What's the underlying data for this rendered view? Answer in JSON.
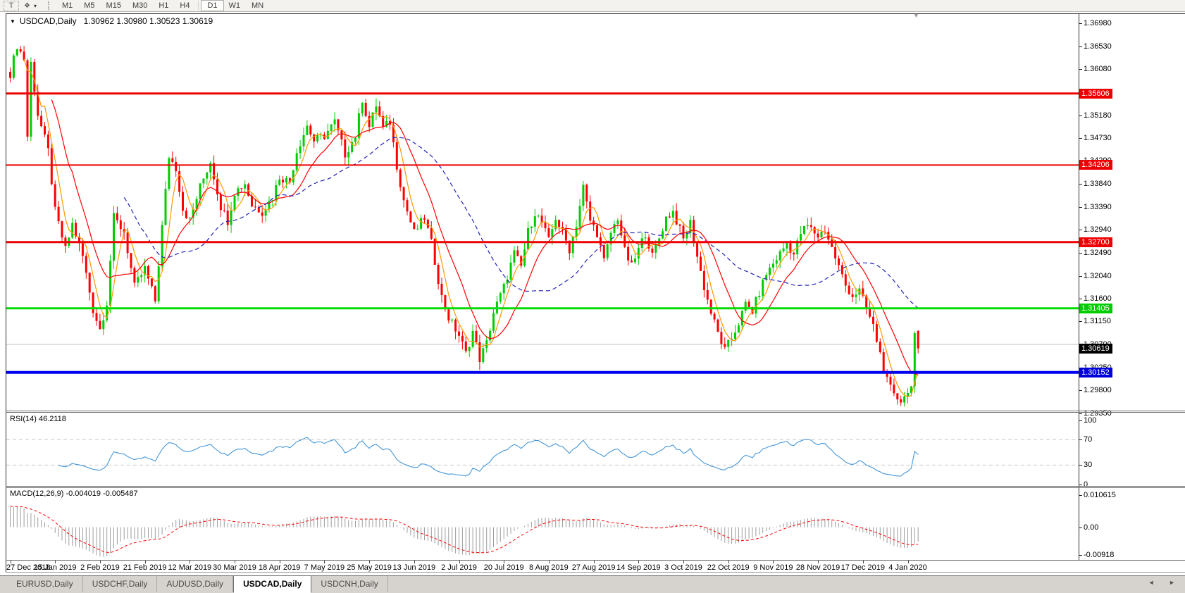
{
  "toolbar": {
    "text_tool_label": "T",
    "timeframes": [
      "M1",
      "M5",
      "M15",
      "M30",
      "H1",
      "H4",
      "D1",
      "W1",
      "MN"
    ],
    "active_timeframe": "D1"
  },
  "icons": {
    "caret_down": "▾",
    "collapse": "▼",
    "shift_marker": "▼",
    "arrange": "❖",
    "tab_scroll_left": "◄",
    "tab_scroll_right": "►"
  },
  "chart_header": {
    "symbol": "USDCAD,Daily",
    "ohlc_text": "1.30962 1.30980 1.30523 1.30619"
  },
  "chart_data": {
    "type": "candlestick",
    "symbol": "USDCAD",
    "timeframe": "Daily",
    "current_ohlc": {
      "open": 1.30962,
      "high": 1.3098,
      "low": 1.30523,
      "close": 1.30619
    },
    "candle_colors": {
      "up": "#00cd00",
      "down": "#ff0000"
    },
    "y_axis": {
      "range_top": 1.37159,
      "range_bottom": 1.29405,
      "ticks": [
        "1.36980",
        "1.36530",
        "1.36080",
        "1.35630",
        "1.35180",
        "1.34730",
        "1.34290",
        "1.33840",
        "1.33390",
        "1.32940",
        "1.32490",
        "1.32040",
        "1.31600",
        "1.31150",
        "1.30700",
        "1.30250",
        "1.29800",
        "1.29350"
      ]
    },
    "x_axis": {
      "labels": [
        "27 Dec 2018",
        "15 Jan 2019",
        "2 Feb 2019",
        "21 Feb 2019",
        "12 Mar 2019",
        "30 Mar 2019",
        "18 Apr 2019",
        "7 May 2019",
        "25 May 2019",
        "13 Jun 2019",
        "2 Jul 2019",
        "20 Jul 2019",
        "8 Aug 2019",
        "27 Aug 2019",
        "14 Sep 2019",
        "3 Oct 2019",
        "22 Oct 2019",
        "9 Nov 2019",
        "28 Nov 2019",
        "17 Dec 2019",
        "4 Jan 2020"
      ],
      "candles_per_label": 13
    },
    "candles": {
      "count": 264,
      "anchors": [
        [
          0,
          1.36
        ],
        [
          2,
          1.3655
        ],
        [
          4,
          1.3628
        ],
        [
          5,
          1.3477
        ],
        [
          6,
          1.362
        ],
        [
          8,
          1.352
        ],
        [
          11,
          1.3448
        ],
        [
          13,
          1.333
        ],
        [
          16,
          1.3255
        ],
        [
          18,
          1.3305
        ],
        [
          21,
          1.3242
        ],
        [
          24,
          1.3138
        ],
        [
          26,
          1.31
        ],
        [
          28,
          1.3152
        ],
        [
          30,
          1.3318
        ],
        [
          33,
          1.329
        ],
        [
          36,
          1.3182
        ],
        [
          39,
          1.3218
        ],
        [
          42,
          1.3155
        ],
        [
          44,
          1.33
        ],
        [
          46,
          1.3438
        ],
        [
          48,
          1.3415
        ],
        [
          50,
          1.3335
        ],
        [
          52,
          1.3312
        ],
        [
          55,
          1.3378
        ],
        [
          58,
          1.3428
        ],
        [
          61,
          1.334
        ],
        [
          63,
          1.3312
        ],
        [
          65,
          1.3368
        ],
        [
          68,
          1.3385
        ],
        [
          70,
          1.3342
        ],
        [
          73,
          1.333
        ],
        [
          76,
          1.3358
        ],
        [
          78,
          1.3398
        ],
        [
          81,
          1.3388
        ],
        [
          83,
          1.3448
        ],
        [
          86,
          1.3498
        ],
        [
          88,
          1.3468
        ],
        [
          91,
          1.3478
        ],
        [
          94,
          1.3505
        ],
        [
          97,
          1.3442
        ],
        [
          100,
          1.3478
        ],
        [
          102,
          1.355
        ],
        [
          104,
          1.3495
        ],
        [
          106,
          1.3538
        ],
        [
          108,
          1.3492
        ],
        [
          110,
          1.3505
        ],
        [
          112,
          1.342
        ],
        [
          114,
          1.3352
        ],
        [
          117,
          1.3288
        ],
        [
          120,
          1.3318
        ],
        [
          122,
          1.3268
        ],
        [
          125,
          1.3162
        ],
        [
          127,
          1.3122
        ],
        [
          130,
          1.3088
        ],
        [
          132,
          1.3052
        ],
        [
          134,
          1.3095
        ],
        [
          136,
          1.3042
        ],
        [
          138,
          1.3072
        ],
        [
          140,
          1.3132
        ],
        [
          143,
          1.3182
        ],
        [
          146,
          1.3248
        ],
        [
          148,
          1.3222
        ],
        [
          150,
          1.329
        ],
        [
          152,
          1.3328
        ],
        [
          154,
          1.3308
        ],
        [
          156,
          1.3272
        ],
        [
          158,
          1.3318
        ],
        [
          160,
          1.3288
        ],
        [
          162,
          1.3256
        ],
        [
          164,
          1.3305
        ],
        [
          166,
          1.3378
        ],
        [
          168,
          1.3312
        ],
        [
          170,
          1.3288
        ],
        [
          172,
          1.3232
        ],
        [
          174,
          1.3288
        ],
        [
          176,
          1.3318
        ],
        [
          178,
          1.3252
        ],
        [
          180,
          1.3222
        ],
        [
          182,
          1.3255
        ],
        [
          184,
          1.3288
        ],
        [
          186,
          1.3242
        ],
        [
          188,
          1.3278
        ],
        [
          190,
          1.3318
        ],
        [
          192,
          1.333
        ],
        [
          195,
          1.3275
        ],
        [
          197,
          1.3308
        ],
        [
          199,
          1.3242
        ],
        [
          201,
          1.3182
        ],
        [
          203,
          1.3132
        ],
        [
          205,
          1.3092
        ],
        [
          207,
          1.3058
        ],
        [
          209,
          1.3082
        ],
        [
          211,
          1.3112
        ],
        [
          213,
          1.3148
        ],
        [
          215,
          1.3135
        ],
        [
          217,
          1.3172
        ],
        [
          219,
          1.3208
        ],
        [
          221,
          1.3228
        ],
        [
          223,
          1.3248
        ],
        [
          225,
          1.3268
        ],
        [
          227,
          1.3246
        ],
        [
          229,
          1.3288
        ],
        [
          231,
          1.3302
        ],
        [
          234,
          1.3282
        ],
        [
          236,
          1.3295
        ],
        [
          238,
          1.3258
        ],
        [
          240,
          1.3222
        ],
        [
          242,
          1.3185
        ],
        [
          244,
          1.3165
        ],
        [
          246,
          1.3175
        ],
        [
          248,
          1.314
        ],
        [
          250,
          1.3105
        ],
        [
          252,
          1.3052
        ],
        [
          254,
          1.2998
        ],
        [
          256,
          1.2968
        ],
        [
          258,
          1.2962
        ],
        [
          260,
          1.2975
        ],
        [
          261,
          1.2988
        ],
        [
          262,
          1.3092
        ],
        [
          263,
          1.30619
        ]
      ]
    },
    "horizontal_lines": [
      {
        "price": 1.35606,
        "color": "#ee0000",
        "width": 3,
        "label": "1.35606",
        "label_bg": "#ee0000",
        "label_fg": "#ffffff"
      },
      {
        "price": 1.34206,
        "color": "#ee0000",
        "width": 2,
        "label": "1.34206",
        "label_bg": "#ee0000",
        "label_fg": "#ffffff"
      },
      {
        "price": 1.327,
        "color": "#ee0000",
        "width": 3,
        "label": "1.32700",
        "label_bg": "#ee0000",
        "label_fg": "#ffffff"
      },
      {
        "price": 1.31405,
        "color": "#00dd00",
        "width": 3,
        "label": "1.31405",
        "label_bg": "#00cc00",
        "label_fg": "#ffffff"
      },
      {
        "price": 1.307,
        "color": "#c0c0c0",
        "width": 1,
        "label": null,
        "label_bg": null,
        "label_fg": null
      },
      {
        "price": 1.30152,
        "color": "#0000ee",
        "width": 4,
        "label": "1.30152",
        "label_bg": "#0000dd",
        "label_fg": "#ffffff"
      }
    ],
    "current_price_marker": {
      "price": 1.30619,
      "label": "1.30619",
      "bg": "#000000",
      "fg": "#ffffff"
    },
    "moving_averages": [
      {
        "name": "fast",
        "period": 5,
        "color": "#ff9900",
        "style": "solid"
      },
      {
        "name": "medium",
        "period": 13,
        "color": "#ff0000",
        "style": "solid"
      },
      {
        "name": "slow",
        "period": 34,
        "color": "#2222bb",
        "style": "dashed"
      }
    ],
    "rsi": {
      "label": "RSI(14) 46.2118",
      "period": 14,
      "current": 46.2118,
      "color": "#4596d6",
      "levels": [
        70,
        30
      ],
      "scale_ticks": [
        "100",
        "70",
        "30",
        "0"
      ],
      "scale_min": 0,
      "scale_max": 100
    },
    "macd": {
      "label": "MACD(12,26,9) -0.004019 -0.005487",
      "fast": 12,
      "slow": 26,
      "signal": 9,
      "current_macd": -0.004019,
      "current_signal": -0.005487,
      "hist_color": "#9c9c9c",
      "signal_color": "#ff0000",
      "scale_ticks": [
        "0.010615",
        "0.00",
        "-0.00918"
      ],
      "scale_max": 0.010615,
      "scale_min": -0.00918
    }
  },
  "tabs": {
    "items": [
      {
        "label": "EURUSD,Daily",
        "active": false
      },
      {
        "label": "USDCHF,Daily",
        "active": false
      },
      {
        "label": "AUDUSD,Daily",
        "active": false
      },
      {
        "label": "USDCAD,Daily",
        "active": true
      },
      {
        "label": "USDCNH,Daily",
        "active": false
      }
    ]
  }
}
